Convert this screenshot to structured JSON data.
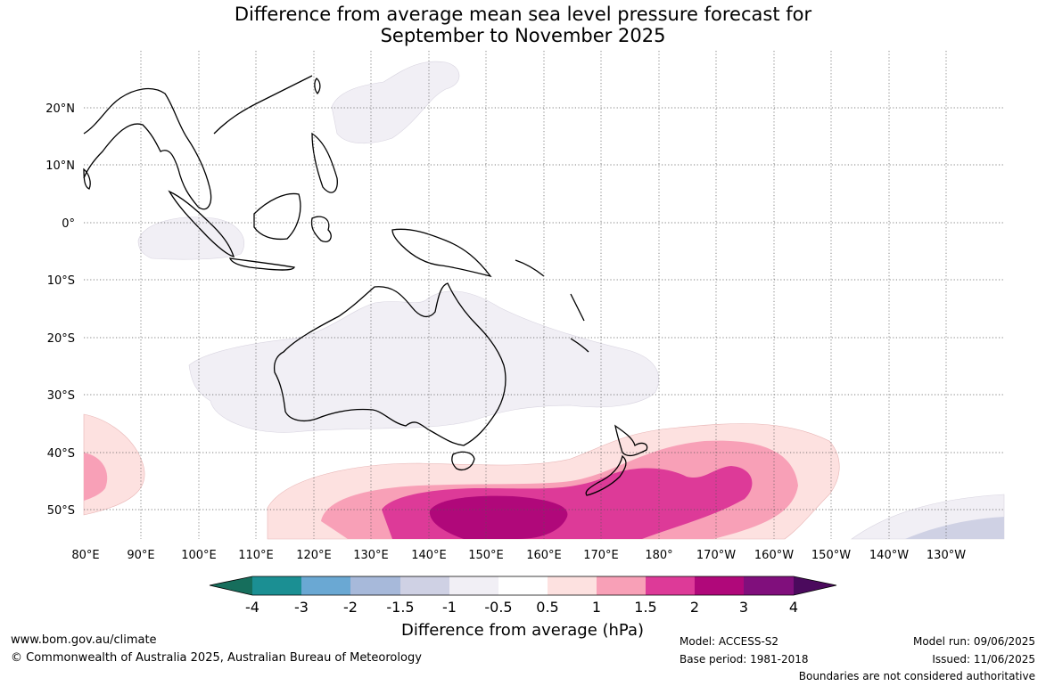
{
  "title": {
    "line1": "Difference from average mean sea level pressure forecast for",
    "line2": "September to November 2025"
  },
  "map": {
    "lat_labels": [
      "20°N",
      "10°N",
      "0°",
      "10°S",
      "20°S",
      "30°S",
      "40°S",
      "50°S"
    ],
    "lon_labels": [
      "80°E",
      "90°E",
      "100°E",
      "110°E",
      "120°E",
      "130°E",
      "140°E",
      "150°E",
      "160°E",
      "170°E",
      "180°",
      "170°W",
      "160°W",
      "150°W",
      "140°W",
      "130°W"
    ],
    "grid": true
  },
  "colorbar": {
    "ticks": [
      "-4",
      "-3",
      "-2",
      "-1.5",
      "-1",
      "-0.5",
      "0.5",
      "1",
      "1.5",
      "2",
      "3",
      "4"
    ],
    "colors": [
      "#166e5c",
      "#1b8f93",
      "#6aa8d3",
      "#a7b9da",
      "#cfd1e4",
      "#f1eff5",
      "#ffffff",
      "#fde1e0",
      "#f8a0b7",
      "#dd3a98",
      "#b0087a",
      "#800f7c",
      "#4b0a5d"
    ],
    "label": "Difference from average (hPa)"
  },
  "footer": {
    "url": "www.bom.gov.au/climate",
    "copyright": "© Commonwealth of Australia 2025, Australian Bureau of Meteorology",
    "model": "Model: ACCESS-S2",
    "base_period": "Base period: 1981-2018",
    "model_run": "Model run: 09/06/2025",
    "issued": "Issued: 11/06/2025",
    "disclaimer": "Boundaries are not considered authoritative"
  }
}
